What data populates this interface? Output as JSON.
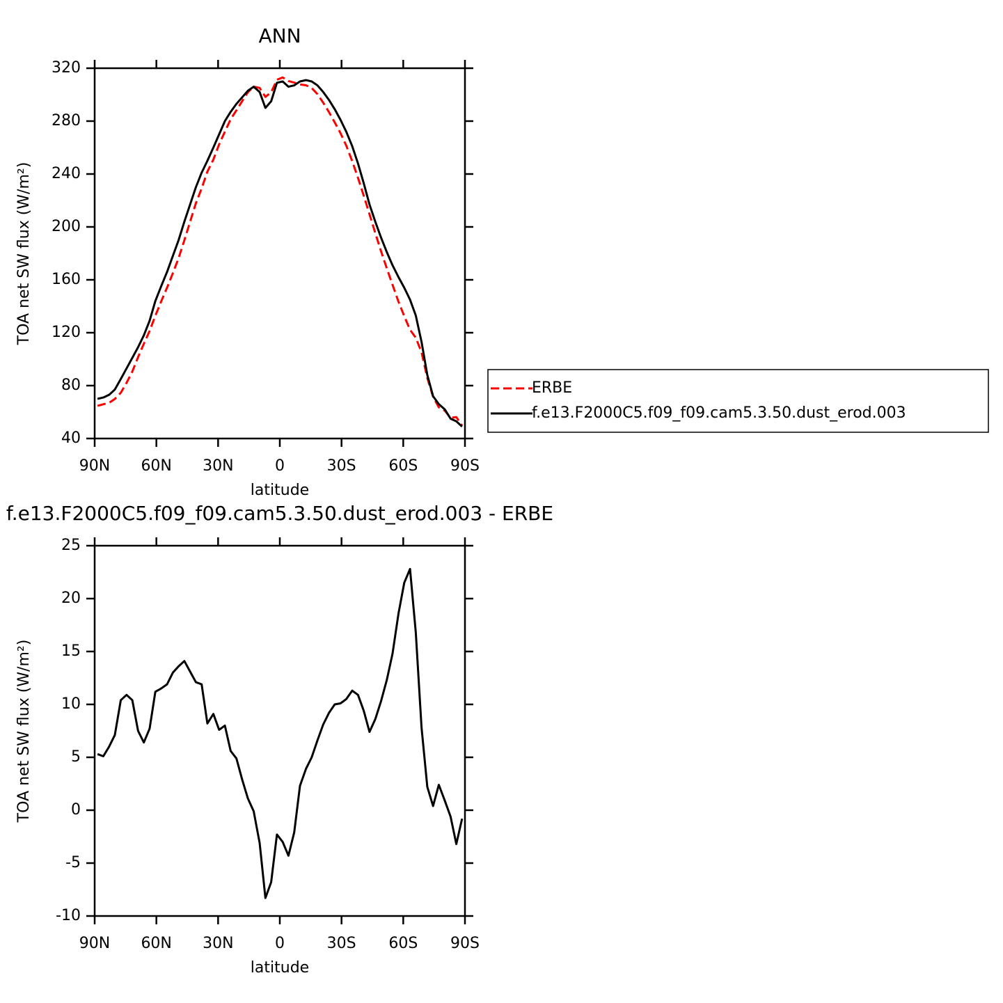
{
  "chart_data": [
    {
      "type": "line",
      "title": "ANN",
      "xlabel": "latitude",
      "ylabel": "TOA net SW flux (W/m²)",
      "x": [
        88.6,
        85.8,
        83.0,
        80.2,
        77.3,
        74.5,
        71.7,
        68.9,
        66.1,
        63.3,
        60.5,
        57.7,
        54.8,
        52.0,
        49.2,
        46.4,
        43.6,
        40.8,
        38.0,
        35.2,
        32.3,
        29.5,
        26.7,
        23.9,
        21.1,
        18.3,
        15.5,
        12.7,
        9.8,
        7.0,
        4.2,
        1.4,
        -1.4,
        -4.2,
        -7.0,
        -9.8,
        -12.7,
        -15.5,
        -18.3,
        -21.1,
        -23.9,
        -26.7,
        -29.5,
        -32.3,
        -35.2,
        -38.0,
        -40.8,
        -43.6,
        -46.4,
        -49.2,
        -52.0,
        -54.8,
        -57.7,
        -60.5,
        -63.3,
        -66.1,
        -68.9,
        -71.7,
        -74.5,
        -77.3,
        -80.2,
        -83.0,
        -85.8,
        -88.6
      ],
      "series": [
        {
          "name": "ERBE",
          "color": "#ff0000",
          "style": "dashed",
          "values": [
            64.7,
            65.9,
            67.0,
            69.9,
            74.6,
            82.1,
            90.6,
            101.5,
            111.6,
            121.3,
            132.8,
            143.5,
            154.1,
            165.0,
            176.4,
            189.9,
            203.9,
            217.9,
            229.1,
            241.8,
            250.9,
            262.4,
            272.0,
            281.4,
            288.1,
            295.1,
            301.9,
            306.1,
            305.1,
            298.3,
            301.8,
            311.3,
            313.0,
            310.3,
            309.1,
            307.7,
            307.1,
            305.0,
            300.4,
            293.9,
            286.8,
            279.0,
            270.9,
            261.5,
            249.7,
            237.1,
            223.6,
            209.6,
            195.4,
            181.7,
            168.7,
            156.2,
            143.4,
            132.5,
            122.2,
            116.2,
            105.2,
            85.8,
            71.6,
            63.6,
            61.1,
            55.6,
            56.2,
            49.8
          ]
        },
        {
          "name": "f.e13.F2000C5.f09_f09.cam5.3.50.dust_erod.003",
          "color": "#000000",
          "style": "solid",
          "values": [
            70,
            71,
            73,
            77,
            85,
            93,
            101,
            109,
            118,
            129,
            144,
            155,
            166,
            178,
            190,
            204,
            217,
            230,
            241,
            250,
            260,
            270,
            280,
            287,
            293,
            298,
            303,
            306,
            302,
            290,
            295,
            309,
            310,
            306,
            307,
            310,
            311,
            310,
            307,
            302,
            296,
            289,
            281,
            272,
            261,
            248,
            233,
            217,
            204,
            192,
            181,
            171,
            162,
            154,
            145,
            133,
            113,
            88,
            72,
            66,
            62,
            55,
            53,
            49
          ]
        }
      ],
      "xlim": [
        90,
        -90
      ],
      "ylim": [
        40,
        320
      ],
      "xticks": [
        {
          "value": 90,
          "label": "90N"
        },
        {
          "value": 60,
          "label": "60N"
        },
        {
          "value": 30,
          "label": "30N"
        },
        0,
        {
          "value": -30,
          "label": "30S"
        },
        {
          "value": -60,
          "label": "60S"
        },
        {
          "value": -90,
          "label": "90S"
        }
      ],
      "yticks": [
        40,
        80,
        120,
        160,
        200,
        240,
        280,
        320
      ],
      "legend": "right"
    },
    {
      "type": "line",
      "title": "f.e13.F2000C5.f09_f09.cam5.3.50.dust_erod.003 - ERBE",
      "xlabel": "latitude",
      "ylabel": "TOA net SW flux (W/m²)",
      "x": [
        88.6,
        85.8,
        83.0,
        80.2,
        77.3,
        74.5,
        71.7,
        68.9,
        66.1,
        63.3,
        60.5,
        57.7,
        54.8,
        52.0,
        49.2,
        46.4,
        43.6,
        40.8,
        38.0,
        35.2,
        32.3,
        29.5,
        26.7,
        23.9,
        21.1,
        18.3,
        15.5,
        12.7,
        9.8,
        7.0,
        4.2,
        1.4,
        -1.4,
        -4.2,
        -7.0,
        -9.8,
        -12.7,
        -15.5,
        -18.3,
        -21.1,
        -23.9,
        -26.7,
        -29.5,
        -32.3,
        -35.2,
        -38.0,
        -40.8,
        -43.6,
        -46.4,
        -49.2,
        -52.0,
        -54.8,
        -57.7,
        -60.5,
        -63.3,
        -66.1,
        -68.9,
        -71.7,
        -74.5,
        -77.3,
        -80.2,
        -83.0,
        -85.8,
        -88.6
      ],
      "series": [
        {
          "color": "#000000",
          "style": "solid",
          "values": [
            5.3,
            5.1,
            6.0,
            7.1,
            10.4,
            10.9,
            10.4,
            7.5,
            6.4,
            7.7,
            11.2,
            11.5,
            11.9,
            13.0,
            13.6,
            14.1,
            13.1,
            12.1,
            11.9,
            8.2,
            9.1,
            7.6,
            8.0,
            5.6,
            4.9,
            2.9,
            1.1,
            -0.1,
            -3.1,
            -8.3,
            -6.8,
            -2.3,
            -3.0,
            -4.3,
            -2.1,
            2.3,
            3.9,
            5.0,
            6.6,
            8.1,
            9.2,
            10.0,
            10.1,
            10.5,
            11.3,
            10.9,
            9.4,
            7.4,
            8.6,
            10.3,
            12.3,
            14.8,
            18.6,
            21.5,
            22.8,
            16.8,
            7.8,
            2.2,
            0.4,
            2.4,
            0.9,
            -0.6,
            -3.2,
            -0.8
          ]
        }
      ],
      "xlim": [
        90,
        -90
      ],
      "ylim": [
        -10,
        25
      ],
      "xticks": [
        {
          "value": 90,
          "label": "90N"
        },
        {
          "value": 60,
          "label": "60N"
        },
        {
          "value": 30,
          "label": "30N"
        },
        0,
        {
          "value": -30,
          "label": "30S"
        },
        {
          "value": -60,
          "label": "60S"
        },
        {
          "value": -90,
          "label": "90S"
        }
      ],
      "yticks": [
        -10,
        -5,
        0,
        5,
        10,
        15,
        20,
        25
      ]
    }
  ]
}
